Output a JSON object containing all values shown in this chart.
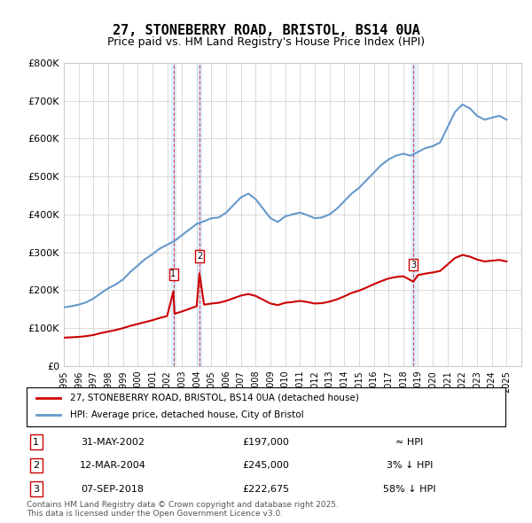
{
  "title": "27, STONEBERRY ROAD, BRISTOL, BS14 0UA",
  "subtitle": "Price paid vs. HM Land Registry's House Price Index (HPI)",
  "ylabel_ticks": [
    "£0",
    "£100K",
    "£200K",
    "£300K",
    "£400K",
    "£500K",
    "£600K",
    "£700K",
    "£800K"
  ],
  "ylim": [
    0,
    800000
  ],
  "xlim_start": 1995,
  "xlim_end": 2026,
  "transactions": [
    {
      "id": 1,
      "date": 2002.42,
      "price": 197000,
      "label": "1"
    },
    {
      "id": 2,
      "date": 2004.19,
      "price": 245000,
      "label": "2"
    },
    {
      "id": 3,
      "date": 2018.68,
      "price": 222675,
      "label": "3"
    }
  ],
  "transaction_table": [
    {
      "num": "1",
      "date": "31-MAY-2002",
      "price": "£197,000",
      "hpi": "≈ HPI"
    },
    {
      "num": "2",
      "date": "12-MAR-2004",
      "price": "£245,000",
      "hpi": "3% ↓ HPI"
    },
    {
      "num": "3",
      "date": "07-SEP-2018",
      "price": "£222,675",
      "hpi": "58% ↓ HPI"
    }
  ],
  "legend1": "27, STONEBERRY ROAD, BRISTOL, BS14 0UA (detached house)",
  "legend2": "HPI: Average price, detached house, City of Bristol",
  "footer": "Contains HM Land Registry data © Crown copyright and database right 2025.\nThis data is licensed under the Open Government Licence v3.0.",
  "line_red": "#cc0000",
  "line_blue": "#6699cc",
  "vline_color": "#cc0000",
  "bg_color": "#ffffff",
  "grid_color": "#cccccc",
  "highlight_fill": "#ddeeff",
  "hpi_data_x": [
    1995,
    1995.5,
    1996,
    1996.5,
    1997,
    1997.5,
    1998,
    1998.5,
    1999,
    1999.5,
    2000,
    2000.5,
    2001,
    2001.5,
    2002,
    2002.5,
    2003,
    2003.5,
    2004,
    2004.5,
    2005,
    2005.5,
    2006,
    2006.5,
    2007,
    2007.5,
    2008,
    2008.5,
    2009,
    2009.5,
    2010,
    2010.5,
    2011,
    2011.5,
    2012,
    2012.5,
    2013,
    2013.5,
    2014,
    2014.5,
    2015,
    2015.5,
    2016,
    2016.5,
    2017,
    2017.5,
    2018,
    2018.5,
    2019,
    2019.5,
    2020,
    2020.5,
    2021,
    2021.5,
    2022,
    2022.5,
    2023,
    2023.5,
    2024,
    2024.5,
    2025
  ],
  "hpi_data_y": [
    155000,
    158000,
    162000,
    168000,
    178000,
    192000,
    205000,
    215000,
    228000,
    248000,
    265000,
    282000,
    295000,
    310000,
    320000,
    330000,
    345000,
    360000,
    375000,
    382000,
    390000,
    392000,
    405000,
    425000,
    445000,
    455000,
    440000,
    415000,
    390000,
    380000,
    395000,
    400000,
    405000,
    398000,
    390000,
    392000,
    400000,
    415000,
    435000,
    455000,
    470000,
    490000,
    510000,
    530000,
    545000,
    555000,
    560000,
    555000,
    565000,
    575000,
    580000,
    590000,
    630000,
    670000,
    690000,
    680000,
    660000,
    650000,
    655000,
    660000,
    650000
  ],
  "red_data_x": [
    1995,
    1995.5,
    1996,
    1996.5,
    1997,
    1997.5,
    1998,
    1998.5,
    1999,
    1999.5,
    2000,
    2000.5,
    2001,
    2001.5,
    2002,
    2002.42,
    2002.5,
    2003,
    2003.5,
    2004,
    2004.19,
    2004.5,
    2005,
    2005.5,
    2006,
    2006.5,
    2007,
    2007.5,
    2008,
    2008.5,
    2009,
    2009.5,
    2010,
    2010.5,
    2011,
    2011.5,
    2012,
    2012.5,
    2013,
    2013.5,
    2014,
    2014.5,
    2015,
    2015.5,
    2016,
    2016.5,
    2017,
    2017.5,
    2018,
    2018.68,
    2019,
    2019.5,
    2020,
    2020.5,
    2021,
    2021.5,
    2022,
    2022.5,
    2023,
    2023.5,
    2024,
    2024.5,
    2025
  ],
  "red_data_y": [
    75000,
    76000,
    77000,
    79000,
    82000,
    87000,
    91000,
    95000,
    100000,
    106000,
    111000,
    116000,
    121000,
    127000,
    132000,
    197000,
    138000,
    144000,
    151000,
    158000,
    245000,
    162000,
    165000,
    167000,
    172000,
    179000,
    186000,
    190000,
    185000,
    175000,
    165000,
    161000,
    167000,
    169000,
    172000,
    169000,
    165000,
    166000,
    170000,
    176000,
    184000,
    193000,
    199000,
    207000,
    216000,
    224000,
    231000,
    235000,
    237000,
    222675,
    240000,
    244000,
    247000,
    251000,
    268000,
    285000,
    293000,
    289000,
    281000,
    276000,
    278000,
    280000,
    276000
  ]
}
